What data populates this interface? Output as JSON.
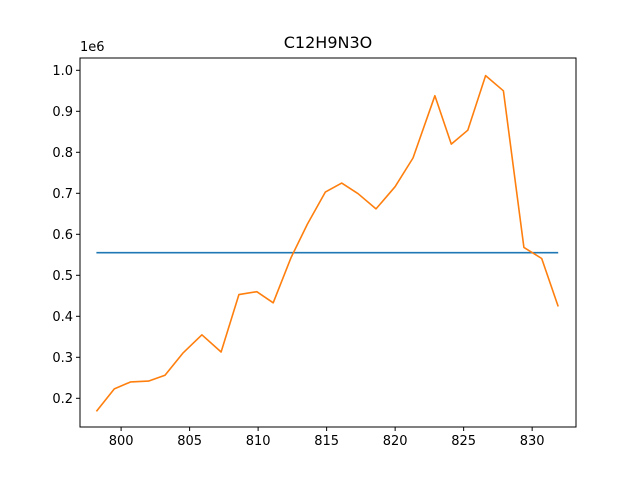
{
  "chart_data": {
    "type": "line",
    "title": "C12H9N3O",
    "xlabel": "",
    "ylabel": "",
    "y_offset_label": "1e6",
    "xlim": [
      797.0,
      833.2
    ],
    "ylim": [
      0.13,
      1.03
    ],
    "grid": false,
    "x_ticks": [
      800,
      805,
      810,
      815,
      820,
      825,
      830
    ],
    "x_tick_labels": [
      "800",
      "805",
      "810",
      "815",
      "820",
      "825",
      "830"
    ],
    "y_ticks": [
      0.2,
      0.3,
      0.4,
      0.5,
      0.6,
      0.7,
      0.8,
      0.9,
      1.0
    ],
    "y_tick_labels": [
      "0.2",
      "0.3",
      "0.4",
      "0.5",
      "0.6",
      "0.7",
      "0.8",
      "0.9",
      "1.0"
    ],
    "series": [
      {
        "color": "#1f77b4",
        "x": [
          798.2,
          831.9
        ],
        "y": [
          0.555,
          0.555
        ]
      },
      {
        "color": "#ff7f0e",
        "x": [
          798.2,
          799.5,
          800.7,
          802.0,
          803.2,
          804.5,
          805.9,
          807.3,
          808.6,
          809.9,
          811.1,
          812.4,
          813.6,
          814.9,
          816.1,
          817.3,
          818.6,
          820.0,
          821.3,
          822.9,
          824.1,
          825.3,
          826.6,
          827.9,
          829.4,
          830.7,
          831.9
        ],
        "y": [
          0.168,
          0.223,
          0.24,
          0.242,
          0.256,
          0.31,
          0.355,
          0.313,
          0.453,
          0.46,
          0.433,
          0.543,
          0.625,
          0.703,
          0.725,
          0.699,
          0.662,
          0.716,
          0.786,
          0.938,
          0.82,
          0.854,
          0.987,
          0.95,
          0.568,
          0.541,
          0.424
        ]
      }
    ]
  }
}
